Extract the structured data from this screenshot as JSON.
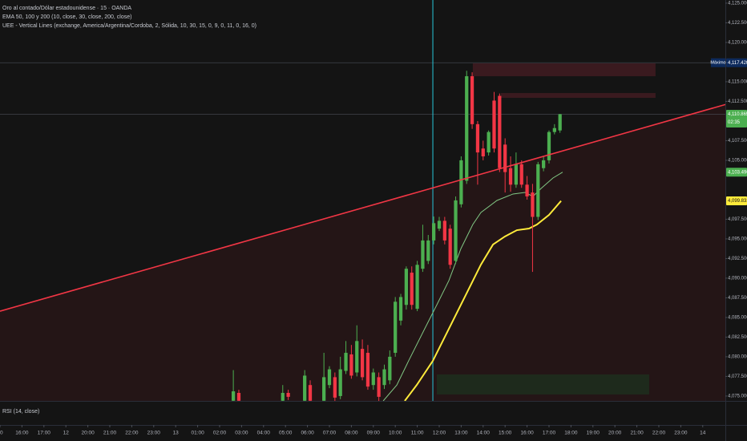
{
  "chart_data": {
    "type": "candlestick",
    "legend_lines": [
      "Oro al contado/Dólar estadounidense · 15 · OANDA",
      "EMA 50, 100 y 200 (10, close, 30, close, 200, close)",
      "UEE - Vertical Lines (exchange, America/Argentina/Cordoba, 2, Sólida, 10, 30, 15, 0, 9, 0, 11, 0, 16, 0)"
    ],
    "pane_label": "RSI (14, close)",
    "up_color": "#4caf50",
    "down_color": "#f23645",
    "x": [
      10.625,
      10.875,
      12.875,
      13.125,
      13.875,
      14.125,
      14.75,
      15,
      15.25,
      15.5,
      15.75,
      16,
      16.25,
      16.5,
      16.75,
      17,
      17.25,
      17.5,
      17.75,
      18,
      18.25,
      18.5,
      18.75,
      19,
      19.25,
      19.5,
      19.75,
      20,
      20.25,
      20.5,
      20.75,
      21,
      21.25,
      21.5,
      21.75,
      22,
      22.25,
      22.5,
      22.75,
      23,
      23.25,
      23.5,
      23.75,
      24,
      24.25,
      24.5,
      24.75,
      25,
      25.25,
      25.5
    ],
    "open": [
      4074.4,
      4075.4,
      4074.4,
      4075.4,
      4074.4,
      4076.4,
      4074.4,
      4076.4,
      4077.4,
      4075.0,
      4078.2,
      4080.3,
      4078.0,
      4081.0,
      4080.5,
      4076.4,
      4077.4,
      4076.4,
      4077.0,
      4080.5,
      4084.6,
      4086.6,
      4090.7,
      4086.1,
      4091.2,
      4092.2,
      4094.8,
      4096.3,
      4097.3,
      4096.3,
      4092.2,
      4099.4,
      4102.4,
      4115.7,
      4109.6,
      4106.5,
      4106.0,
      4112.6,
      4113.2,
      4107.0,
      4104.0,
      4101.9,
      4104.5,
      4101.9,
      4100.9,
      4097.8,
      4104.0,
      4105.0,
      4108.6,
      4108.8
    ],
    "high": [
      4078.3,
      4075.8,
      4076.4,
      4075.8,
      4078.3,
      4077.0,
      4080.5,
      4078.8,
      4078.0,
      4080.0,
      4082.0,
      4081.5,
      4084.0,
      4082.2,
      4081.5,
      4078.5,
      4078.0,
      4079.0,
      4080.8,
      4087.6,
      4088.0,
      4091.5,
      4091.5,
      4092.2,
      4096.8,
      4095.5,
      4097.85,
      4097.8,
      4097.8,
      4096.8,
      4100.4,
      4105.5,
      4116.4,
      4116.2,
      4110.0,
      4107.5,
      4108.8,
      4113.7,
      4113.5,
      4107.8,
      4105.5,
      4106.0,
      4105.0,
      4103.0,
      4102.0,
      4104.8,
      4105.5,
      4108.8,
      4109.6,
      4110.9
    ],
    "low": [
      4074.0,
      4073.5,
      4074.0,
      4074.5,
      4074.0,
      4073.5,
      4074.0,
      4076.0,
      4074.2,
      4074.6,
      4077.8,
      4077.2,
      4077.5,
      4077.0,
      4075.8,
      4075.8,
      4074.2,
      4075.9,
      4076.5,
      4080.0,
      4084.0,
      4086.0,
      4086.0,
      4085.8,
      4090.8,
      4091.8,
      4094.3,
      4096.0,
      4094.3,
      4091.2,
      4091.8,
      4099.0,
      4102.0,
      4109.0,
      4101.9,
      4105.0,
      4105.6,
      4106.0,
      4103.5,
      4100.9,
      4101.0,
      4101.5,
      4101.5,
      4100.0,
      4090.8,
      4097.4,
      4103.6,
      4104.6,
      4108.3,
      4108.5
    ],
    "close": [
      4075.6,
      4074.4,
      4075.4,
      4074.9,
      4077.6,
      4074.4,
      4077.4,
      4078.4,
      4074.8,
      4078.4,
      4080.5,
      4077.6,
      4082.0,
      4077.4,
      4076.2,
      4078.0,
      4074.9,
      4078.4,
      4080.0,
      4087.0,
      4087.6,
      4091.2,
      4086.6,
      4091.7,
      4094.8,
      4094.8,
      4097.0,
      4097.3,
      4094.8,
      4091.7,
      4099.9,
      4105.0,
      4115.7,
      4109.6,
      4106.0,
      4105.5,
      4108.6,
      4106.5,
      4104.0,
      4103.5,
      4101.9,
      4104.5,
      4101.9,
      4100.4,
      4097.8,
      4104.5,
      4105.0,
      4108.6,
      4109.1,
      4110.865
    ],
    "overlays": [
      {
        "color": "#81c784",
        "width": 1,
        "x": [
          17.45,
          18.07,
          18.61,
          19.34,
          19.89,
          20.44,
          20.99,
          21.53,
          21.9,
          22.63,
          23.36,
          23.91,
          24.27,
          24.64,
          25.18,
          25.62
        ],
        "y": [
          4074.38,
          4076.4,
          4079.5,
          4083.56,
          4086.6,
          4089.69,
          4093.77,
          4096.83,
          4098.36,
          4099.89,
          4100.71,
          4100.91,
          4100.4,
          4101.42,
          4102.75,
          4103.49
        ]
      },
      {
        "color": "#ffeb3b",
        "width": 2,
        "x": [
          18.43,
          18.98,
          19.71,
          20.44,
          21.17,
          21.9,
          22.45,
          22.99,
          23.54,
          24.09,
          24.45,
          25.0,
          25.55
        ],
        "y": [
          4074.38,
          4076.42,
          4079.48,
          4083.56,
          4087.64,
          4091.73,
          4094.28,
          4095.3,
          4096.11,
          4096.32,
          4096.83,
          4098.05,
          4099.833
        ]
      }
    ],
    "trendline": {
      "color": "#f23645",
      "shade": "#241516",
      "x": [
        0,
        33.03
      ],
      "y": [
        4085.8,
        4112.1
      ]
    },
    "zones": [
      {
        "color": "#3a1a1f",
        "x": [
          21.53,
          29.85
        ],
        "y": [
          4115.7,
          4117.34
        ]
      },
      {
        "color": "#3a1a1f",
        "x": [
          22.81,
          29.85
        ],
        "y": [
          4112.95,
          4113.56
        ]
      },
      {
        "color": "#1e2a1c",
        "x": [
          19.89,
          29.56
        ],
        "y": [
          4075.2,
          4077.75
        ]
      }
    ],
    "crosshair_x": 19.71,
    "crosshair_color": "#26c6da",
    "xlim": [
      0,
      33.03
    ],
    "xticks": [
      {
        "value": 0,
        "label": "00"
      },
      {
        "value": 1,
        "label": "16:00"
      },
      {
        "value": 2,
        "label": "17:00"
      },
      {
        "value": 3,
        "label": "12"
      },
      {
        "value": 4,
        "label": "20:00"
      },
      {
        "value": 5,
        "label": "21:00"
      },
      {
        "value": 6,
        "label": "22:00"
      },
      {
        "value": 7,
        "label": "23:00"
      },
      {
        "value": 8,
        "label": "13"
      },
      {
        "value": 9,
        "label": "01:00"
      },
      {
        "value": 10,
        "label": "02:00"
      },
      {
        "value": 11,
        "label": "03:00"
      },
      {
        "value": 12,
        "label": "04:00"
      },
      {
        "value": 13,
        "label": "05:00"
      },
      {
        "value": 14,
        "label": "06:00"
      },
      {
        "value": 15,
        "label": "07:00"
      },
      {
        "value": 16,
        "label": "08:00"
      },
      {
        "value": 17,
        "label": "09:00"
      },
      {
        "value": 18,
        "label": "10:00"
      },
      {
        "value": 19,
        "label": "11:00"
      },
      {
        "value": 20,
        "label": "12:00"
      },
      {
        "value": 21,
        "label": "13:00"
      },
      {
        "value": 22,
        "label": "14:00"
      },
      {
        "value": 23,
        "label": "15:00"
      },
      {
        "value": 24,
        "label": "16:00"
      },
      {
        "value": 25,
        "label": "17:00"
      },
      {
        "value": 26,
        "label": "18:00"
      },
      {
        "value": 27,
        "label": "19:00"
      },
      {
        "value": 28,
        "label": "20:00"
      },
      {
        "value": 29,
        "label": "21:00"
      },
      {
        "value": 30,
        "label": "22:00"
      },
      {
        "value": 31,
        "label": "23:00"
      },
      {
        "value": 32,
        "label": "14"
      }
    ],
    "ylim": [
      4074.38,
      4125.4
    ],
    "yticks": [
      {
        "value": 4075,
        "label": "4,075.000"
      },
      {
        "value": 4077.5,
        "label": "4,077.500"
      },
      {
        "value": 4080,
        "label": "4,080.000"
      },
      {
        "value": 4082.5,
        "label": "4,082.500"
      },
      {
        "value": 4085,
        "label": "4,085.000"
      },
      {
        "value": 4087.5,
        "label": "4,087.500"
      },
      {
        "value": 4090,
        "label": "4,090.000"
      },
      {
        "value": 4092.5,
        "label": "4,092.500"
      },
      {
        "value": 4095,
        "label": "4,095.000"
      },
      {
        "value": 4097.5,
        "label": "4,097.500"
      },
      {
        "value": 4105,
        "label": "4,105.000"
      },
      {
        "value": 4107.5,
        "label": "4,107.500"
      },
      {
        "value": 4112.5,
        "label": "4,112.500"
      },
      {
        "value": 4115,
        "label": "4,115.000"
      },
      {
        "value": 4120,
        "label": "4,120.000"
      },
      {
        "value": 4122.5,
        "label": "4,122.500"
      },
      {
        "value": 4125,
        "label": "4,125.000"
      }
    ],
    "price_labels": [
      {
        "value": 4117.42,
        "label": "4,117.420",
        "tag": "Máximo",
        "color": "#0d2a5c",
        "text_color": "#ffffff",
        "guide": true
      },
      {
        "value": 4110.865,
        "label": "4,110.865",
        "sublabel": "02:35",
        "color": "#4caf50",
        "text_color": "#ffffff",
        "guide": true
      },
      {
        "value": 4103.49,
        "label": "4,103.490",
        "color": "#4caf50",
        "text_color": "#ffffff",
        "guide": false
      },
      {
        "value": 4099.833,
        "label": "4,099.833",
        "color": "#ffeb3b",
        "text_color": "#131313",
        "guide": false
      }
    ]
  }
}
